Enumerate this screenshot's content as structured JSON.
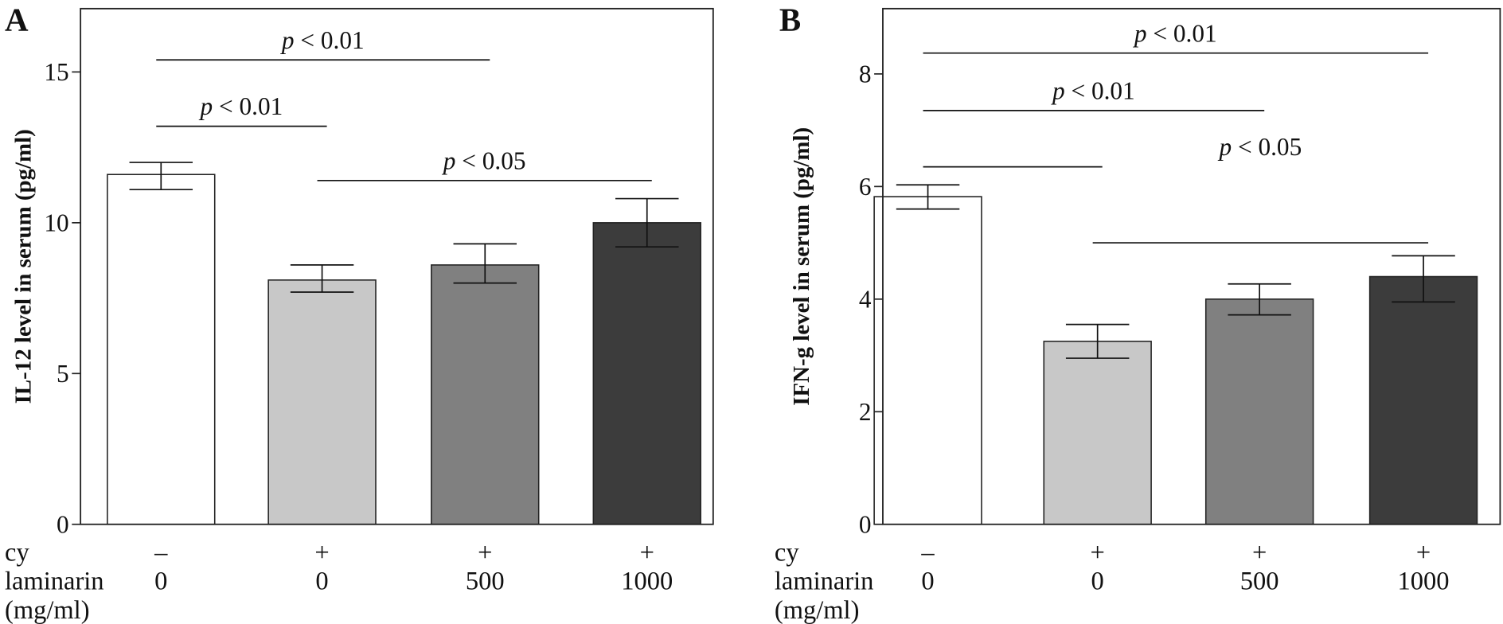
{
  "chart_data": [
    {
      "type": "bar",
      "panel_label": "A",
      "ylabel": "IL-12 level in serum (pg/ml)",
      "ylim": [
        0,
        17.1
      ],
      "yticks": [
        0,
        5,
        10,
        15
      ],
      "grid": false,
      "categories": [
        {
          "cy": "–",
          "laminarin": "0"
        },
        {
          "cy": "+",
          "laminarin": "0"
        },
        {
          "cy": "+",
          "laminarin": "500"
        },
        {
          "cy": "+",
          "laminarin": "1000"
        }
      ],
      "values": [
        11.6,
        8.1,
        8.6,
        10.0
      ],
      "error_low": [
        11.1,
        7.7,
        8.0,
        9.2
      ],
      "error_high": [
        12.0,
        8.6,
        9.3,
        10.8
      ],
      "bar_colors": [
        "#ffffff",
        "#c8c8c8",
        "#808080",
        "#3c3c3c"
      ],
      "significance": [
        {
          "from": 0,
          "to": 2,
          "level": 15.4,
          "label": "p < 0.01"
        },
        {
          "from": 0,
          "to": 1,
          "level": 13.2,
          "label": "p < 0.01"
        },
        {
          "from": 1,
          "to": 3,
          "level": 11.4,
          "label": "p < 0.05"
        }
      ]
    },
    {
      "type": "bar",
      "panel_label": "B",
      "ylabel": "IFN-g level in serum (pg/ml)",
      "ylim": [
        0,
        9.16
      ],
      "yticks": [
        0,
        2,
        4,
        6,
        8
      ],
      "grid": false,
      "categories": [
        {
          "cy": "–",
          "laminarin": "0"
        },
        {
          "cy": "+",
          "laminarin": "0"
        },
        {
          "cy": "+",
          "laminarin": "500"
        },
        {
          "cy": "+",
          "laminarin": "1000"
        }
      ],
      "values": [
        5.82,
        3.25,
        4.0,
        4.4
      ],
      "error_low": [
        5.6,
        2.95,
        3.72,
        3.95
      ],
      "error_high": [
        6.03,
        3.55,
        4.27,
        4.77
      ],
      "bar_colors": [
        "#ffffff",
        "#c8c8c8",
        "#808080",
        "#3c3c3c"
      ],
      "significance": [
        {
          "from": 0,
          "to": 3,
          "level": 8.37,
          "label": "p < 0.01"
        },
        {
          "from": 0,
          "to": 2,
          "level": 7.35,
          "label": "p < 0.01"
        },
        {
          "from": 0,
          "to": 1,
          "level": 6.35,
          "label": ""
        },
        {
          "from": 1,
          "to": 3,
          "level": 5.0,
          "label": "p < 0.05",
          "label_above_level": 6.35
        }
      ]
    }
  ],
  "row_labels": {
    "cy": "cy",
    "laminarin": "laminarin",
    "unit": "(mg/ml)"
  }
}
